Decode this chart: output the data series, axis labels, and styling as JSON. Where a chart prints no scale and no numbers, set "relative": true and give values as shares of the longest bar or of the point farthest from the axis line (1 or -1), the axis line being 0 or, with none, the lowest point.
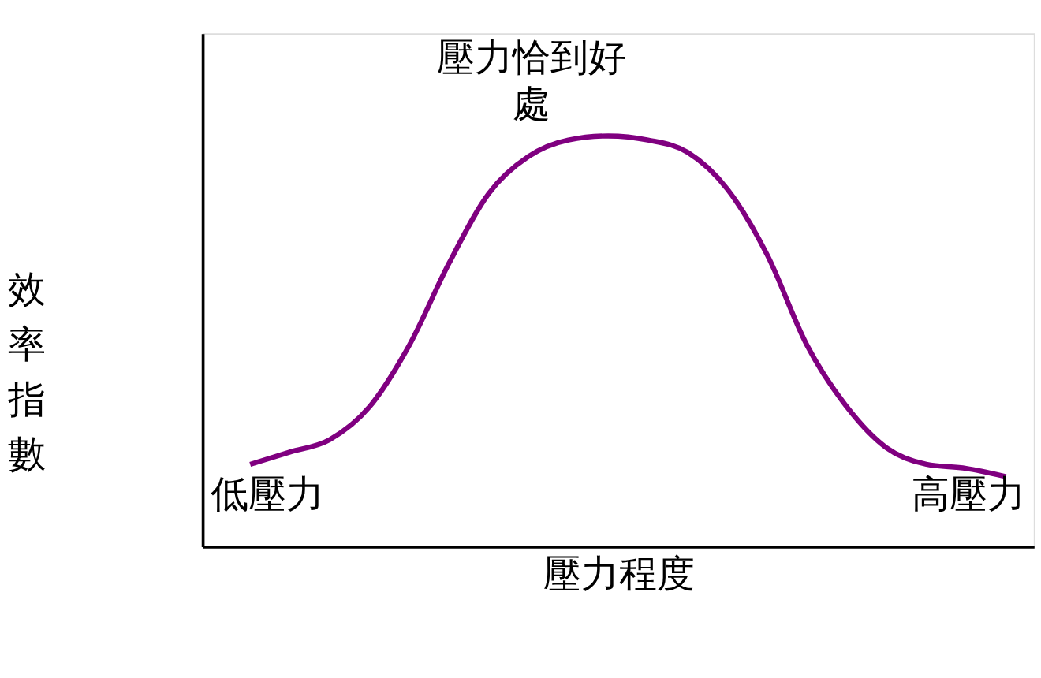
{
  "chart_data": {
    "type": "line",
    "relative": true,
    "xlabel": "壓力程度",
    "ylabel": "效率指數",
    "categories": [
      null,
      null,
      null,
      null,
      null,
      null,
      null,
      null,
      null,
      null,
      null,
      null,
      null,
      null,
      null,
      null,
      null,
      null,
      null,
      null
    ],
    "series": [
      {
        "color": "#800080",
        "values": [
          0.2,
          0.23,
          0.26,
          0.34,
          0.49,
          0.69,
          0.86,
          0.95,
          0.99,
          1,
          0.99,
          0.96,
          0.87,
          0.71,
          0.49,
          0.34,
          0.24,
          0.2,
          0.19,
          0.17
        ]
      }
    ],
    "annotations": [
      "壓力恰到好處",
      "低壓力",
      "高壓力"
    ],
    "grid": false,
    "marker": "none",
    "line_style": "solid"
  }
}
